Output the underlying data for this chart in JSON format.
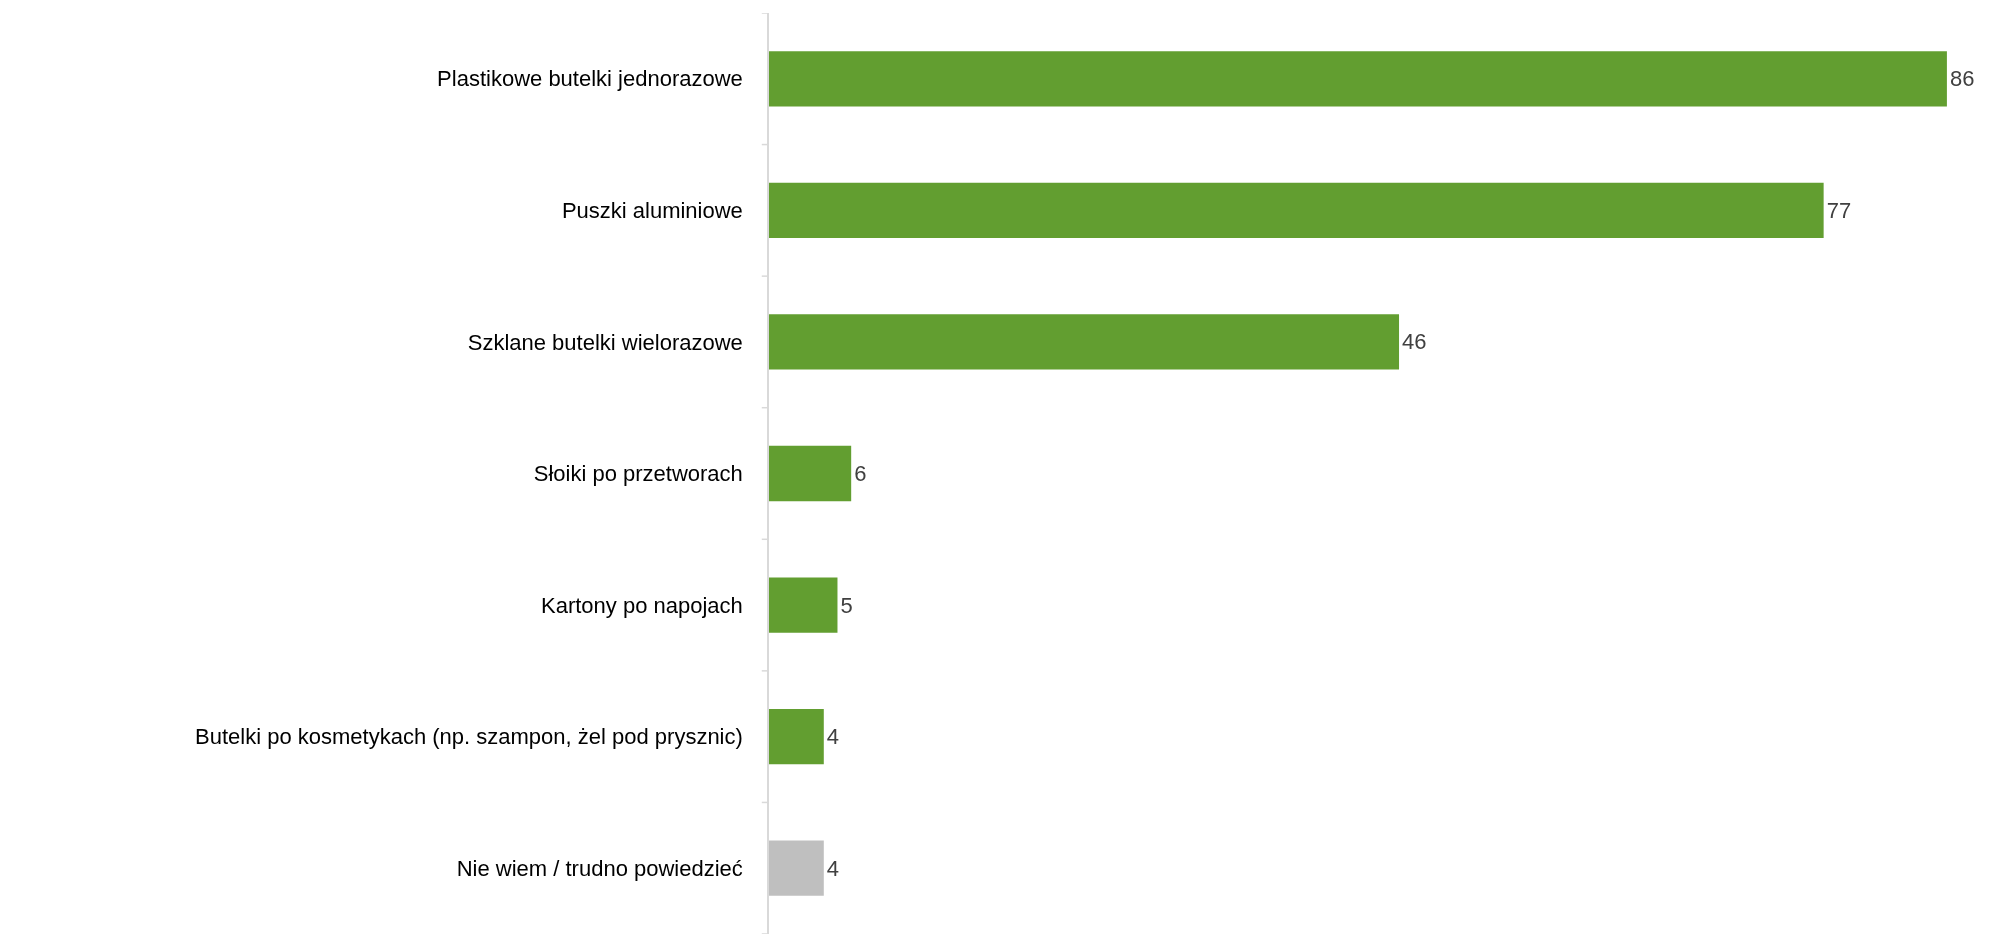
{
  "chart_data": {
    "type": "bar",
    "orientation": "horizontal",
    "categories": [
      "Plastikowe butelki jednorazowe",
      "Puszki aluminiowe",
      "Szklane butelki wielorazowe",
      "Słoiki po przetworach",
      "Kartony po napojach",
      "Butelki po kosmetykach (np. szampon, żel pod prysznic)",
      "Nie wiem / trudno powiedzieć"
    ],
    "values": [
      86,
      77,
      46,
      6,
      5,
      4,
      4
    ],
    "colors": [
      "#629e30",
      "#629e30",
      "#629e30",
      "#629e30",
      "#629e30",
      "#629e30",
      "#bfbfbf"
    ],
    "tick_labels": "y",
    "data_labels": true
  }
}
